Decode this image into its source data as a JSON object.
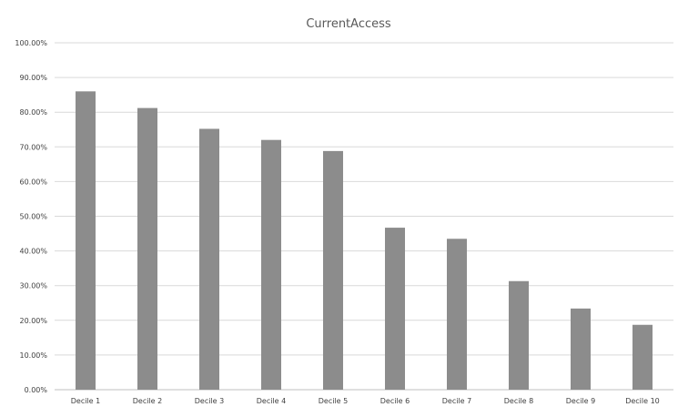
{
  "chart_data": {
    "type": "bar",
    "title": "CurrentAccess",
    "categories": [
      "Decile 1",
      "Decile 2",
      "Decile 3",
      "Decile 4",
      "Decile 5",
      "Decile 6",
      "Decile 7",
      "Decile 8",
      "Decile 9",
      "Decile 10"
    ],
    "values": [
      0.86,
      0.812,
      0.752,
      0.72,
      0.688,
      0.467,
      0.435,
      0.313,
      0.234,
      0.187
    ],
    "ylim": [
      0,
      1
    ],
    "yticks": [
      0,
      0.1,
      0.2,
      0.3,
      0.4,
      0.5,
      0.6,
      0.7,
      0.8,
      0.9,
      1.0
    ],
    "ytick_labels": [
      "0.00%",
      "10.00%",
      "20.00%",
      "30.00%",
      "40.00%",
      "50.00%",
      "60.00%",
      "70.00%",
      "80.00%",
      "90.00%",
      "100.00%"
    ],
    "grid": true,
    "legend": "none",
    "bar_color": "#8c8c8c"
  }
}
